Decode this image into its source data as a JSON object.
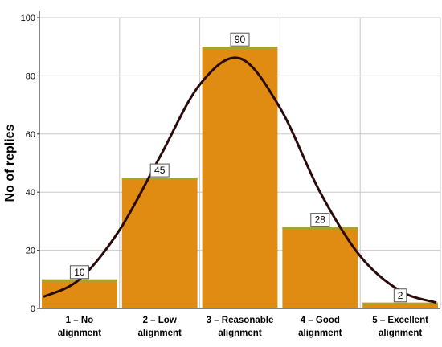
{
  "chart_data": {
    "type": "bar",
    "title": "",
    "xlabel": "",
    "ylabel": "No of replies",
    "ylim": [
      0,
      100
    ],
    "yticks": [
      0,
      20,
      40,
      60,
      80,
      100
    ],
    "grid": true,
    "categories": [
      [
        "1 – No",
        "alignment"
      ],
      [
        "2 – Low",
        "alignment"
      ],
      [
        "3 – Reasonable",
        "alignment"
      ],
      [
        "4 – Good",
        "alignment"
      ],
      [
        "5 – Excellent",
        "alignment"
      ]
    ],
    "values": [
      10,
      45,
      90,
      28,
      2
    ],
    "data_labels": [
      "10",
      "45",
      "90",
      "28",
      "2"
    ],
    "overlay": {
      "type": "normal-curve",
      "x": [
        0.55,
        1,
        1.5,
        2,
        2.5,
        3,
        3.5,
        4,
        4.5,
        5,
        5.45
      ],
      "y": [
        4,
        10,
        27,
        52,
        77,
        86,
        69,
        40,
        18,
        6,
        2
      ]
    },
    "colors": {
      "bar_fill": "#E08C13",
      "bar_top": "#A2A728",
      "curve": "#2A0A0A",
      "grid": "#C8C8C8",
      "axis": "#333333",
      "text": "#000000"
    }
  }
}
